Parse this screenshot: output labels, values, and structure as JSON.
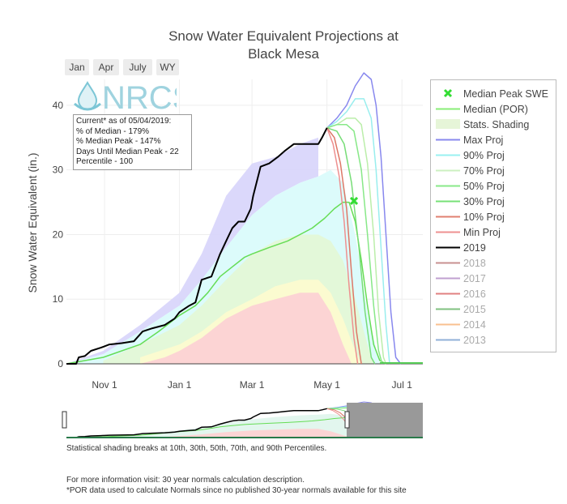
{
  "title_line1": "Snow Water Equivalent Projections at",
  "title_line2": "Black Mesa",
  "range_buttons": [
    "Jan",
    "Apr",
    "July",
    "WY"
  ],
  "logo_text": "NRCS",
  "info": {
    "line1": "Current* as of 05/04/2019:",
    "line2": "% of Median - 179%",
    "line3": "% Median Peak - 147%",
    "line4": "Days Until Median Peak - 22",
    "line5": "Percentile - 100"
  },
  "legend": [
    {
      "label": "Median Peak SWE",
      "color": "#33dd33",
      "sym": "x",
      "dim": false
    },
    {
      "label": "Median (POR)",
      "color": "#88ee77",
      "sym": "line",
      "dim": false
    },
    {
      "label": "Stats. Shading",
      "color": "#e6f5d8",
      "sym": "fill",
      "dim": false
    },
    {
      "label": "Max Proj",
      "color": "#8888ee",
      "sym": "line",
      "dim": false
    },
    {
      "label": "90% Proj",
      "color": "#99f0f0",
      "sym": "line",
      "dim": false
    },
    {
      "label": "70% Proj",
      "color": "#ccf0c0",
      "sym": "line",
      "dim": false
    },
    {
      "label": "50% Proj",
      "color": "#88e888",
      "sym": "line",
      "dim": false
    },
    {
      "label": "30% Proj",
      "color": "#77e077",
      "sym": "line",
      "dim": false
    },
    {
      "label": "10% Proj",
      "color": "#e08070",
      "sym": "line",
      "dim": false
    },
    {
      "label": "Min Proj",
      "color": "#ee9090",
      "sym": "line",
      "dim": false
    },
    {
      "label": "2019",
      "color": "#000000",
      "sym": "line",
      "dim": false
    },
    {
      "label": "2018",
      "color": "#c89090",
      "sym": "line",
      "dim": true
    },
    {
      "label": "2017",
      "color": "#c0a0d0",
      "sym": "line",
      "dim": true
    },
    {
      "label": "2016",
      "color": "#e08080",
      "sym": "line",
      "dim": true
    },
    {
      "label": "2015",
      "color": "#80c080",
      "sym": "line",
      "dim": true
    },
    {
      "label": "2014",
      "color": "#f8c090",
      "sym": "line",
      "dim": true
    },
    {
      "label": "2013",
      "color": "#90b0d8",
      "sym": "line",
      "dim": true
    }
  ],
  "footnotes": {
    "shading": "Statistical shading breaks at 10th, 30th, 50th, 70th, and 90th Percentiles.",
    "info_visit": "For more information visit: 30 year normals calculation description.",
    "por_note": "*POR data used to calculate Normals since no published 30-year normals available for this site"
  },
  "chart_data": {
    "type": "line",
    "ylabel": "Snow Water Equivalent (in.)",
    "ylim": [
      0,
      44
    ],
    "yticks": [
      "0",
      "10",
      "20",
      "30",
      "40"
    ],
    "ytick_values": [
      0,
      10,
      20,
      30,
      40
    ],
    "xticks": [
      {
        "label": "Nov 1",
        "day": 31
      },
      {
        "label": "Jan 1",
        "day": 92
      },
      {
        "label": "Mar 1",
        "day": 151
      },
      {
        "label": "May 1",
        "day": 212
      },
      {
        "label": "Jul 1",
        "day": 273
      }
    ],
    "x_axis_note": "x = day of water year starting Oct 1",
    "xlim": [
      0,
      290
    ],
    "shading": {
      "max_env": [
        [
          0,
          0
        ],
        [
          30,
          2
        ],
        [
          60,
          6
        ],
        [
          92,
          11
        ],
        [
          110,
          17
        ],
        [
          130,
          26
        ],
        [
          151,
          31
        ],
        [
          170,
          32
        ],
        [
          190,
          34
        ],
        [
          205,
          35
        ]
      ],
      "p90": [
        [
          0,
          0
        ],
        [
          30,
          1.5
        ],
        [
          60,
          5
        ],
        [
          92,
          9
        ],
        [
          110,
          13
        ],
        [
          130,
          18
        ],
        [
          151,
          23
        ],
        [
          170,
          26
        ],
        [
          190,
          28
        ],
        [
          205,
          29
        ],
        [
          215,
          30
        ],
        [
          225,
          28
        ],
        [
          235,
          20
        ],
        [
          245,
          8
        ],
        [
          255,
          0
        ]
      ],
      "p70": [
        [
          30,
          0.5
        ],
        [
          60,
          3
        ],
        [
          92,
          6
        ],
        [
          110,
          9
        ],
        [
          130,
          13
        ],
        [
          151,
          17
        ],
        [
          170,
          19
        ],
        [
          190,
          20
        ],
        [
          205,
          20
        ],
        [
          215,
          19
        ],
        [
          225,
          16
        ],
        [
          235,
          10
        ],
        [
          245,
          3
        ],
        [
          250,
          0
        ]
      ],
      "p30": [
        [
          60,
          1
        ],
        [
          92,
          3
        ],
        [
          110,
          5
        ],
        [
          130,
          8
        ],
        [
          151,
          10
        ],
        [
          170,
          12
        ],
        [
          190,
          13
        ],
        [
          205,
          13
        ],
        [
          215,
          11
        ],
        [
          225,
          7
        ],
        [
          235,
          2
        ],
        [
          240,
          0
        ]
      ],
      "p10": [
        [
          60,
          0
        ],
        [
          80,
          1
        ],
        [
          92,
          2
        ],
        [
          110,
          4
        ],
        [
          130,
          7
        ],
        [
          151,
          9
        ],
        [
          170,
          10
        ],
        [
          190,
          11
        ],
        [
          205,
          11
        ],
        [
          215,
          8
        ],
        [
          225,
          3
        ],
        [
          232,
          0
        ]
      ]
    },
    "series": [
      {
        "name": "Median (POR)",
        "color": "#66dd55",
        "width": 1.5,
        "points": [
          [
            0,
            0
          ],
          [
            15,
            0.5
          ],
          [
            30,
            1
          ],
          [
            45,
            2
          ],
          [
            60,
            3
          ],
          [
            75,
            5
          ],
          [
            92,
            7.5
          ],
          [
            105,
            9
          ],
          [
            115,
            11
          ],
          [
            125,
            13.5
          ],
          [
            135,
            15
          ],
          [
            145,
            16.5
          ],
          [
            151,
            17
          ],
          [
            165,
            18
          ],
          [
            180,
            19
          ],
          [
            190,
            20
          ],
          [
            200,
            21
          ],
          [
            210,
            22.5
          ],
          [
            218,
            24
          ],
          [
            225,
            25
          ],
          [
            230,
            25
          ],
          [
            235,
            22
          ],
          [
            240,
            16
          ],
          [
            245,
            9
          ],
          [
            250,
            3
          ],
          [
            255,
            0.5
          ],
          [
            260,
            0
          ]
        ]
      },
      {
        "name": "Max Proj",
        "color": "#8888ee",
        "width": 1.5,
        "points": [
          [
            212,
            36.5
          ],
          [
            220,
            38
          ],
          [
            228,
            40
          ],
          [
            235,
            43
          ],
          [
            242,
            45
          ],
          [
            248,
            44
          ],
          [
            252,
            40
          ],
          [
            256,
            32
          ],
          [
            260,
            20
          ],
          [
            264,
            8
          ],
          [
            268,
            1
          ],
          [
            272,
            0
          ]
        ]
      },
      {
        "name": "90% Proj",
        "color": "#99eeee",
        "width": 1.5,
        "points": [
          [
            212,
            36.5
          ],
          [
            220,
            37.5
          ],
          [
            228,
            39
          ],
          [
            235,
            41
          ],
          [
            242,
            41
          ],
          [
            248,
            38
          ],
          [
            252,
            30
          ],
          [
            256,
            18
          ],
          [
            260,
            6
          ],
          [
            263,
            0
          ]
        ]
      },
      {
        "name": "70% Proj",
        "color": "#bbeeaa",
        "width": 1.5,
        "points": [
          [
            212,
            36.5
          ],
          [
            220,
            37
          ],
          [
            228,
            38
          ],
          [
            235,
            38
          ],
          [
            240,
            37
          ],
          [
            245,
            31
          ],
          [
            250,
            20
          ],
          [
            254,
            8
          ],
          [
            258,
            1
          ],
          [
            260,
            0
          ]
        ]
      },
      {
        "name": "50% Proj",
        "color": "#88e888",
        "width": 1.5,
        "points": [
          [
            212,
            36.5
          ],
          [
            220,
            37
          ],
          [
            228,
            37
          ],
          [
            234,
            36
          ],
          [
            240,
            30
          ],
          [
            245,
            20
          ],
          [
            250,
            9
          ],
          [
            254,
            2
          ],
          [
            257,
            0
          ]
        ]
      },
      {
        "name": "30% Proj",
        "color": "#77dd77",
        "width": 1.5,
        "points": [
          [
            212,
            36.5
          ],
          [
            220,
            36
          ],
          [
            226,
            34
          ],
          [
            232,
            28
          ],
          [
            238,
            18
          ],
          [
            243,
            8
          ],
          [
            248,
            1
          ],
          [
            251,
            0
          ]
        ]
      },
      {
        "name": "10% Proj",
        "color": "#dd7766",
        "width": 1.5,
        "points": [
          [
            212,
            36.5
          ],
          [
            218,
            35
          ],
          [
            223,
            31
          ],
          [
            228,
            24
          ],
          [
            232,
            14
          ],
          [
            236,
            5
          ],
          [
            240,
            0
          ]
        ]
      },
      {
        "name": "Min Proj",
        "color": "#ee9090",
        "width": 1.5,
        "points": [
          [
            212,
            36.5
          ],
          [
            217,
            34
          ],
          [
            222,
            29
          ],
          [
            226,
            22
          ],
          [
            230,
            12
          ],
          [
            234,
            4
          ],
          [
            237,
            0
          ]
        ]
      },
      {
        "name": "2019",
        "color": "#000000",
        "width": 2,
        "points": [
          [
            0,
            0
          ],
          [
            8,
            0
          ],
          [
            10,
            1
          ],
          [
            15,
            1.2
          ],
          [
            20,
            2
          ],
          [
            28,
            2.5
          ],
          [
            35,
            3
          ],
          [
            45,
            3.2
          ],
          [
            55,
            3.5
          ],
          [
            62,
            5
          ],
          [
            70,
            5.5
          ],
          [
            80,
            6
          ],
          [
            88,
            7
          ],
          [
            92,
            8
          ],
          [
            100,
            9
          ],
          [
            105,
            9.5
          ],
          [
            110,
            13
          ],
          [
            118,
            13.5
          ],
          [
            125,
            17
          ],
          [
            130,
            19
          ],
          [
            135,
            21
          ],
          [
            140,
            22
          ],
          [
            145,
            22
          ],
          [
            150,
            24
          ],
          [
            152,
            26
          ],
          [
            158,
            30.5
          ],
          [
            165,
            31
          ],
          [
            172,
            32
          ],
          [
            178,
            33
          ],
          [
            185,
            34
          ],
          [
            195,
            34
          ],
          [
            205,
            34
          ],
          [
            208,
            35
          ],
          [
            212,
            36.5
          ]
        ]
      }
    ],
    "median_peak": {
      "day": 234,
      "swe": 25.2
    }
  }
}
